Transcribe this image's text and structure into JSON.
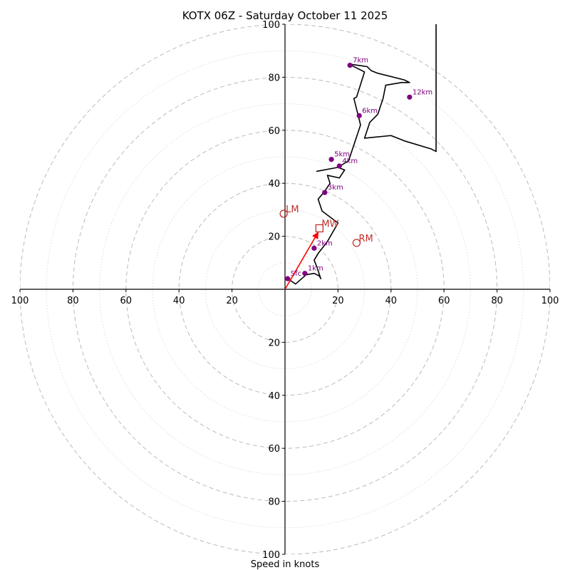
{
  "chart_data": {
    "type": "line",
    "subtype": "hodograph",
    "title": "KOTX 06Z - Saturday October 11 2025",
    "xlabel": "Speed in knots",
    "ylabel": "",
    "xlim": [
      -100,
      100
    ],
    "ylim": [
      -100,
      100
    ],
    "x_tick_labels": [
      "100",
      "80",
      "60",
      "40",
      "20",
      "20",
      "40",
      "60",
      "80",
      "100"
    ],
    "x_tick_values": [
      -100,
      -80,
      -60,
      -40,
      -20,
      20,
      40,
      60,
      80,
      100
    ],
    "y_tick_labels": [
      "100",
      "80",
      "60",
      "40",
      "20",
      "20",
      "40",
      "60",
      "80",
      "100"
    ],
    "y_tick_values": [
      100,
      80,
      60,
      40,
      20,
      -20,
      -40,
      -60,
      -80,
      -100
    ],
    "rings_major": [
      20,
      40,
      60,
      80,
      100
    ],
    "rings_minor": [
      10,
      30,
      50,
      70,
      90
    ],
    "grid": true,
    "colors": {
      "trace": "#000000",
      "height_markers": "#800080",
      "storm_motion": "#c0302a",
      "mean_wind_arrow": "#ff0000",
      "grid": "#bbbbbb"
    },
    "series": [
      {
        "name": "wind profile",
        "u": [
          1,
          4,
          8,
          11,
          13,
          13.5,
          12,
          11,
          12.5,
          16,
          20,
          14,
          12.5,
          15,
          17,
          16,
          20.5,
          22.5,
          20,
          12,
          20,
          24,
          28.5,
          26,
          27,
          30,
          24,
          31,
          32.5,
          35,
          45,
          47,
          44,
          38,
          37,
          35,
          32,
          30,
          40,
          45,
          55,
          57,
          57,
          47
        ],
        "v": [
          4,
          2,
          5.5,
          6,
          5,
          4,
          8.5,
          11,
          13.5,
          18,
          25,
          29.5,
          34,
          37,
          40,
          43,
          42,
          45,
          46,
          44.5,
          46,
          48.5,
          62,
          72,
          72.5,
          82,
          85,
          84,
          82.5,
          81.5,
          79,
          78,
          78,
          77,
          72,
          66,
          63,
          57,
          58,
          56,
          53,
          52,
          101,
          101
        ]
      }
    ],
    "height_markers": [
      {
        "label": "Sfc",
        "u": 1,
        "v": 4
      },
      {
        "label": "1km",
        "u": 7.5,
        "v": 6
      },
      {
        "label": "2km",
        "u": 11,
        "v": 15.5
      },
      {
        "label": "3km",
        "u": 15,
        "v": 36.5
      },
      {
        "label": "4km",
        "u": 20.5,
        "v": 46.5
      },
      {
        "label": "5km",
        "u": 17.5,
        "v": 49
      },
      {
        "label": "6km",
        "u": 28,
        "v": 65.5
      },
      {
        "label": "7km",
        "u": 24.5,
        "v": 84.5
      },
      {
        "label": "12km",
        "u": 47,
        "v": 72.5
      }
    ],
    "storm_motion": [
      {
        "label": "LM",
        "marker": "circle",
        "u": -0.5,
        "v": 28.5
      },
      {
        "label": "MW",
        "marker": "square",
        "u": 13,
        "v": 23
      },
      {
        "label": "RM",
        "marker": "circle",
        "u": 27,
        "v": 17.5
      }
    ],
    "mean_wind_vector": {
      "u": 12.5,
      "v": 21.5
    }
  }
}
